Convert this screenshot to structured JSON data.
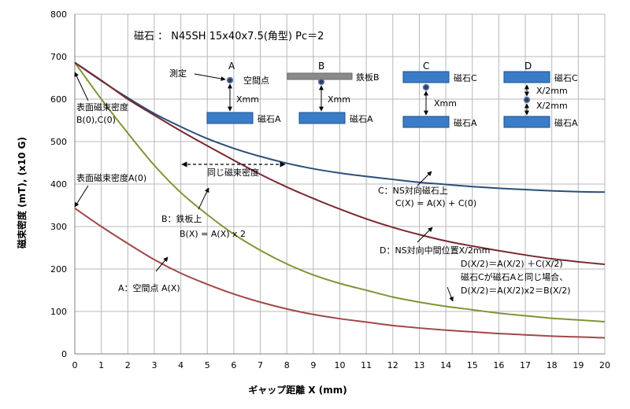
{
  "chart_data": {
    "type": "line",
    "title": "磁石 ： N45SH 15x40x7.5(角型) Pc＝2",
    "xlabel": "ギャップ距離 X (mm)",
    "ylabel": "磁束密度 (mT), (x10 G)",
    "xlim": [
      0,
      20
    ],
    "ylim": [
      0,
      800
    ],
    "x_ticks": [
      "0",
      "1",
      "2",
      "3",
      "4",
      "5",
      "6",
      "7",
      "8",
      "9",
      "10",
      "11",
      "12",
      "13",
      "14",
      "15",
      "16",
      "17",
      "18",
      "19",
      "20"
    ],
    "y_ticks": [
      "0",
      "100",
      "200",
      "300",
      "400",
      "500",
      "600",
      "700",
      "800"
    ],
    "grid": true,
    "x": [
      0,
      1,
      2,
      3,
      4,
      5,
      6,
      7,
      8,
      9,
      10,
      11,
      12,
      13,
      14,
      15,
      16,
      17,
      18,
      19,
      20
    ],
    "series": [
      {
        "name": "A：空間点 A(X)",
        "color": "#a04848",
        "values": [
          343,
          300,
          260,
          222,
          190,
          164,
          141,
          122,
          106,
          93,
          83,
          75,
          67,
          61,
          56,
          52,
          48,
          45,
          42,
          40,
          38
        ]
      },
      {
        "name": "B：鉄板上",
        "color": "#7d9637",
        "values": [
          686,
          600,
          520,
          444,
          380,
          328,
          282,
          244,
          212,
          186,
          166,
          150,
          134,
          122,
          112,
          104,
          96,
          90,
          84,
          80,
          76
        ]
      },
      {
        "name": "C：NS対向磁石上",
        "color": "#2a4f7a",
        "values": [
          686,
          643,
          603,
          566,
          535,
          507,
          484,
          465,
          449,
          436,
          426,
          418,
          411,
          404,
          399,
          394,
          390,
          387,
          384,
          382,
          381
        ]
      },
      {
        "name": "D：NS対向中間位置X/2mm",
        "color": "#7a2830",
        "values": [
          686,
          644,
          600,
          562,
          525,
          490,
          456,
          423,
          393,
          366,
          341,
          318,
          298,
          281,
          266,
          254,
          243,
          233,
          224,
          217,
          211
        ]
      }
    ],
    "annotations": {
      "surface_bc": [
        "表面磁束密度",
        "B(0),C(0)"
      ],
      "surface_a": "表面磁束密度A(0)",
      "same_density": "同じ磁束密度",
      "label_c": [
        "C：NS対向磁石上",
        "C(X) = A(X) + C(0)"
      ],
      "label_b": [
        "B：鉄板上",
        "B(X) = A(X) x 2"
      ],
      "label_d": [
        "D：NS対向中間位置X/2mm",
        "D(X/2)＝A(X/2) ＋C(X/2)",
        "磁石Cが磁石Aと同じ場合、",
        "D(X/2)＝A(X/2)x2＝B(X/2)"
      ],
      "label_a": "A：空間点 A(X)"
    },
    "diagram": {
      "A": {
        "letter": "A",
        "measure": "測定",
        "point": "空間点",
        "gap": "Xmm",
        "magnet": "磁石A"
      },
      "B": {
        "letter": "B",
        "plate": "鉄板B",
        "gap": "Xmm",
        "magnet": "磁石A"
      },
      "C": {
        "letter": "C",
        "top": "磁石C",
        "gap": "Xmm",
        "magnet": "磁石A"
      },
      "D": {
        "letter": "D",
        "top": "磁石C",
        "gap1": "X/2mm",
        "gap2": "X/2mm",
        "magnet": "磁石A"
      }
    }
  }
}
